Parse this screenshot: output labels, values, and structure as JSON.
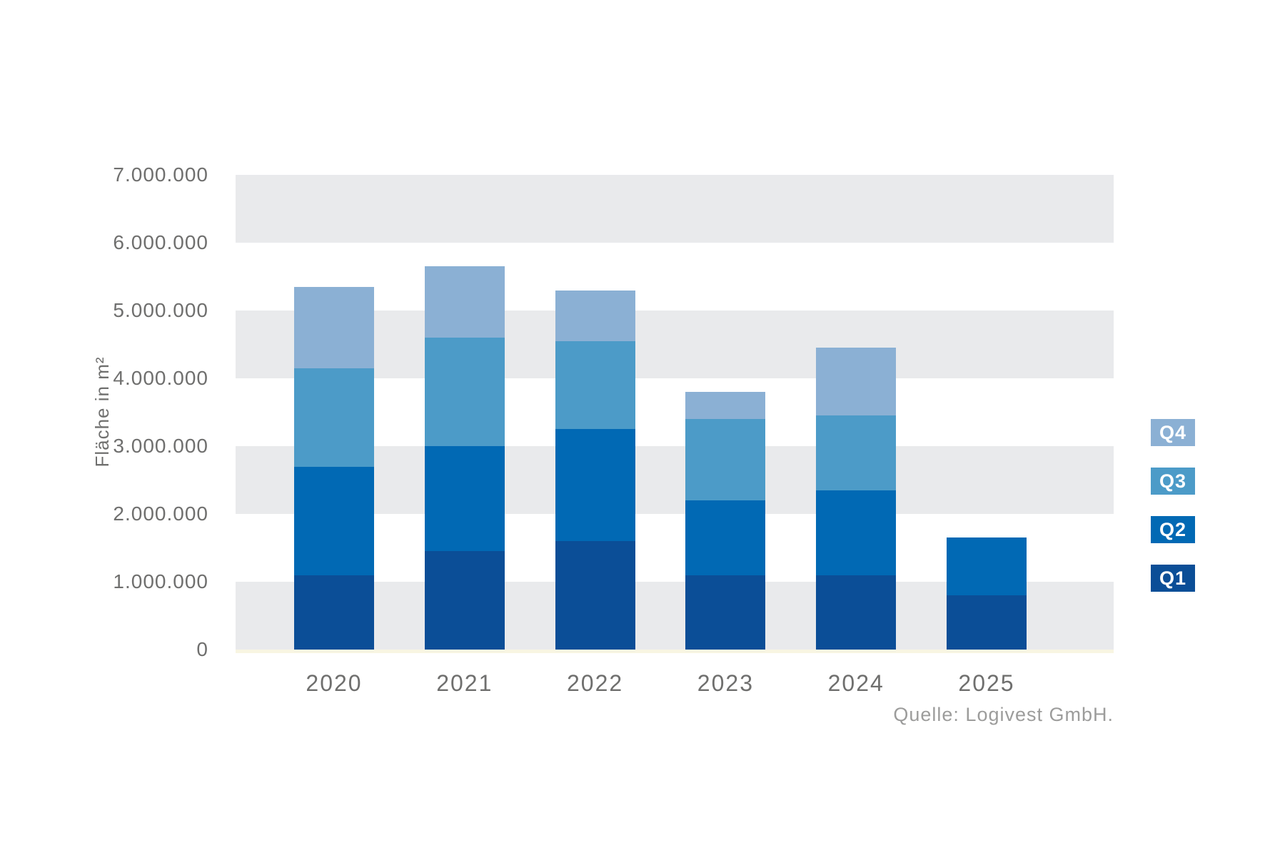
{
  "chart_data": {
    "type": "bar",
    "stacked": true,
    "title": "",
    "categories": [
      "2020",
      "2021",
      "2022",
      "2023",
      "2024",
      "2025"
    ],
    "series": [
      {
        "name": "Q1",
        "color": "#0B4E97",
        "values": [
          1100000,
          1450000,
          1600000,
          1100000,
          1100000,
          800000
        ]
      },
      {
        "name": "Q2",
        "color": "#0169B4",
        "values": [
          1600000,
          1550000,
          1650000,
          1100000,
          1250000,
          850000
        ]
      },
      {
        "name": "Q3",
        "color": "#4C9BC8",
        "values": [
          1450000,
          1600000,
          1300000,
          1200000,
          1100000,
          0
        ]
      },
      {
        "name": "Q4",
        "color": "#8BB0D4",
        "values": [
          1200000,
          1050000,
          750000,
          400000,
          1000000,
          0
        ]
      }
    ],
    "xlabel": "",
    "ylabel": "Fläche in m²",
    "ylim": [
      0,
      7000000
    ],
    "ytick_step": 1000000,
    "yticks": [
      "0",
      "1.000.000",
      "2.000.000",
      "3.000.000",
      "4.000.000",
      "5.000.000",
      "6.000.000",
      "7.000.000"
    ],
    "grid": "alternating-horizontal-bands",
    "band_color": "#E9EAEC",
    "legend": {
      "position": "right",
      "entries": [
        "Q4",
        "Q3",
        "Q2",
        "Q1"
      ]
    },
    "source": "Quelle: Logivest GmbH.",
    "text_color": "#6F6F6E",
    "source_color": "#9C9C9B"
  }
}
